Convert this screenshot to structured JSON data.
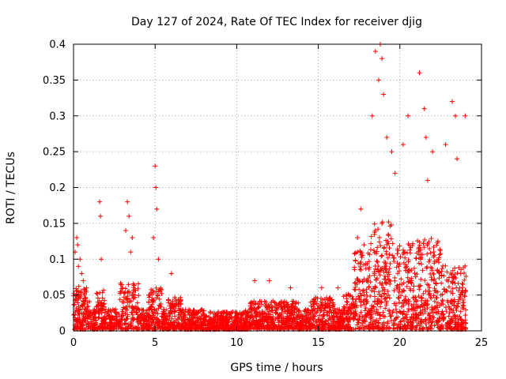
{
  "chart_data": {
    "type": "scatter",
    "title": "Day 127 of 2024, Rate Of TEC Index for receiver djig",
    "xlabel": "GPS time / hours",
    "ylabel": "ROTI / TECUs",
    "xlim": [
      0,
      25
    ],
    "ylim": [
      0,
      0.4
    ],
    "xticks": [
      "0",
      "5",
      "10",
      "15",
      "20",
      "25"
    ],
    "xtick_values": [
      0,
      5,
      10,
      15,
      20,
      25
    ],
    "yticks": [
      "0",
      "0.05",
      "0.1",
      "0.15",
      "0.2",
      "0.25",
      "0.3",
      "0.35",
      "0.4"
    ],
    "ytick_values": [
      0,
      0.05,
      0.1,
      0.15,
      0.2,
      0.25,
      0.3,
      0.35,
      0.4
    ],
    "grid": true,
    "marker": "+",
    "color": "#ff0000",
    "series": [
      {
        "name": "ROTI",
        "x": [
          0.1,
          0.2,
          0.25,
          0.3,
          0.4,
          0.5,
          0.6,
          0.8,
          1.6,
          1.65,
          1.7,
          3.2,
          3.3,
          3.4,
          3.5,
          3.6,
          4.9,
          5.0,
          5.05,
          5.1,
          5.2,
          6.0,
          11.1,
          12.0,
          13.3,
          15.2,
          16.2,
          17.4,
          17.6,
          17.8,
          18.3,
          18.5,
          18.7,
          18.8,
          18.9,
          19.0,
          19.2,
          19.5,
          19.7,
          20.2,
          20.5,
          21.2,
          21.5,
          21.6,
          21.7,
          22.0,
          22.8,
          23.2,
          23.4,
          23.5,
          24.0
        ],
        "y": [
          0.11,
          0.13,
          0.12,
          0.09,
          0.1,
          0.08,
          0.07,
          0.06,
          0.18,
          0.16,
          0.1,
          0.14,
          0.18,
          0.16,
          0.11,
          0.13,
          0.13,
          0.23,
          0.2,
          0.17,
          0.1,
          0.08,
          0.07,
          0.07,
          0.06,
          0.06,
          0.06,
          0.13,
          0.17,
          0.12,
          0.3,
          0.39,
          0.35,
          0.4,
          0.38,
          0.33,
          0.27,
          0.25,
          0.22,
          0.26,
          0.3,
          0.36,
          0.31,
          0.27,
          0.21,
          0.25,
          0.26,
          0.32,
          0.3,
          0.24,
          0.3
        ]
      }
    ]
  }
}
